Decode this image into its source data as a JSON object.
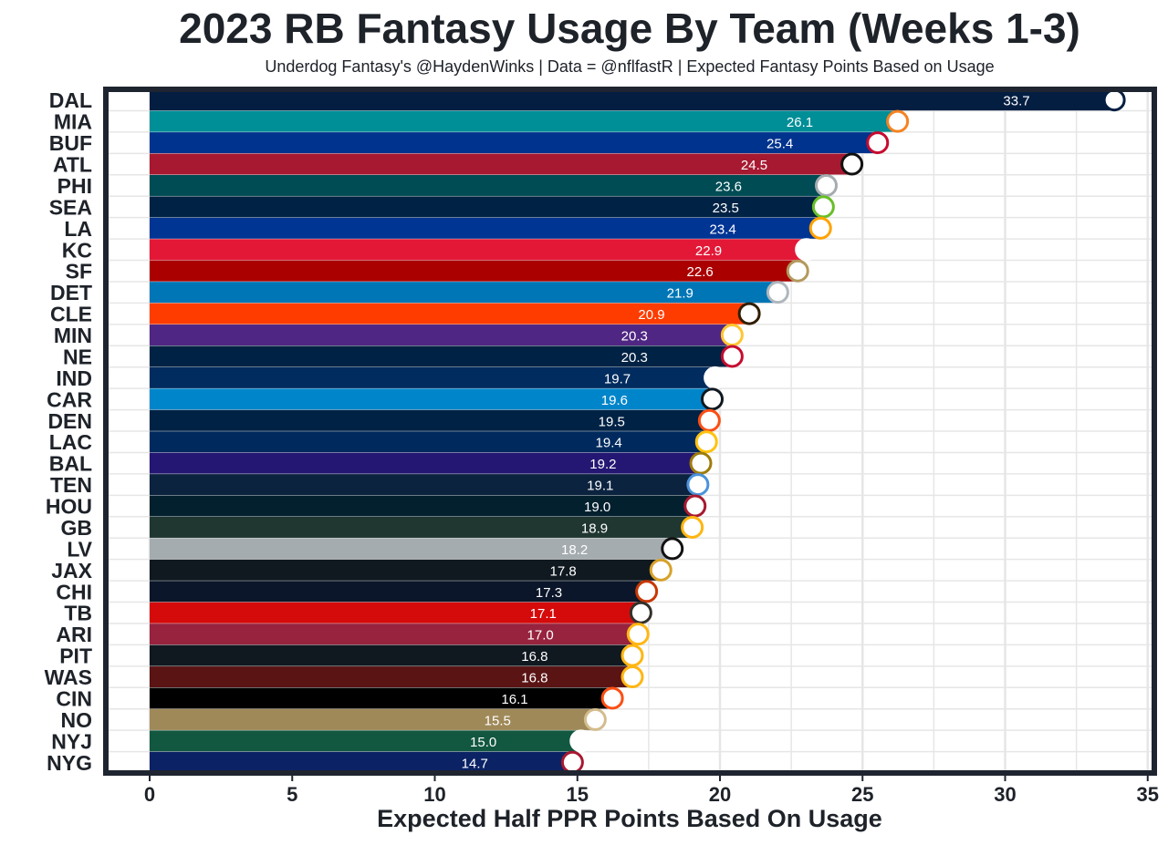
{
  "chart_data": {
    "type": "bar",
    "orientation": "horizontal",
    "title": "2023 RB Fantasy Usage By Team (Weeks 1-3)",
    "subtitle": "Underdog Fantasy's @HaydenWinks | Data = @nflfastR | Expected Fantasy Points Based on Usage",
    "xlabel": "Expected Half PPR Points Based On Usage",
    "ylabel": "",
    "xlim": [
      -1.5,
      35.4
    ],
    "xticks": [
      0,
      5,
      10,
      15,
      20,
      25,
      30,
      35
    ],
    "grid": true,
    "categories": [
      "DAL",
      "MIA",
      "BUF",
      "ATL",
      "PHI",
      "SEA",
      "LA",
      "KC",
      "SF",
      "DET",
      "CLE",
      "MIN",
      "NE",
      "IND",
      "CAR",
      "DEN",
      "LAC",
      "BAL",
      "TEN",
      "HOU",
      "GB",
      "LV",
      "JAX",
      "CHI",
      "TB",
      "ARI",
      "PIT",
      "WAS",
      "CIN",
      "NO",
      "NYJ",
      "NYG"
    ],
    "values": [
      33.7,
      26.1,
      25.4,
      24.5,
      23.6,
      23.5,
      23.4,
      22.9,
      22.6,
      21.9,
      20.9,
      20.3,
      20.3,
      19.7,
      19.6,
      19.5,
      19.4,
      19.2,
      19.1,
      19.0,
      18.9,
      18.2,
      17.8,
      17.3,
      17.1,
      17.0,
      16.8,
      16.8,
      16.1,
      15.5,
      15.0,
      14.7
    ],
    "value_labels": [
      "33.7",
      "26.1",
      "25.4",
      "24.5",
      "23.6",
      "23.5",
      "23.4",
      "22.9",
      "22.6",
      "21.9",
      "20.9",
      "20.3",
      "20.3",
      "19.7",
      "19.6",
      "19.5",
      "19.4",
      "19.2",
      "19.1",
      "19.0",
      "18.9",
      "18.2",
      "17.8",
      "17.3",
      "17.1",
      "17.0",
      "16.8",
      "16.8",
      "16.1",
      "15.5",
      "15.0",
      "14.7"
    ],
    "colors": [
      "#041e42",
      "#008e97",
      "#00338d",
      "#a71930",
      "#004c54",
      "#002244",
      "#003594",
      "#e31837",
      "#aa0000",
      "#0076b6",
      "#ff3c00",
      "#4f2683",
      "#002244",
      "#002c5f",
      "#0085ca",
      "#002244",
      "#002a5e",
      "#241773",
      "#0c2340",
      "#03202f",
      "#203731",
      "#a5acaf",
      "#101820",
      "#0b162a",
      "#d50a0a",
      "#97233f",
      "#101820",
      "#5a1414",
      "#000000",
      "#9f8958",
      "#125740",
      "#0b2265"
    ],
    "icons": [
      "dal-star-icon",
      "mia-dolphin-icon",
      "buf-bison-icon",
      "atl-falcon-icon",
      "phi-eagle-icon",
      "sea-seahawk-icon",
      "la-ram-icon",
      "kc-arrowhead-icon",
      "sf-oval-icon",
      "det-lion-icon",
      "cle-elf-icon",
      "min-viking-icon",
      "ne-patriot-icon",
      "ind-horseshoe-icon",
      "car-panther-icon",
      "den-bronco-icon",
      "lac-bolt-icon",
      "bal-raven-icon",
      "ten-titan-icon",
      "hou-bull-icon",
      "gb-g-icon",
      "lv-shield-icon",
      "jax-jaguar-icon",
      "chi-c-icon",
      "tb-flag-icon",
      "ari-cardinal-icon",
      "pit-steelers-icon",
      "was-w-icon",
      "cin-tiger-icon",
      "no-fleur-icon",
      "nyj-jets-icon",
      "nyg-ny-icon"
    ],
    "icon_colors": [
      "#041e42",
      "#f58220",
      "#c60c30",
      "#111111",
      "#a5acaf",
      "#69be28",
      "#ffa300",
      "#ffffff",
      "#b3995d",
      "#b0b7bc",
      "#311d00",
      "#ffc62f",
      "#c60c30",
      "#ffffff",
      "#101820",
      "#fb4f14",
      "#ffc20e",
      "#9e7c0c",
      "#4b92db",
      "#a71930",
      "#ffb612",
      "#111111",
      "#d7a22a",
      "#c83803",
      "#34302b",
      "#ffb612",
      "#ffb612",
      "#ffb612",
      "#fb4f14",
      "#d3bc8d",
      "#ffffff",
      "#a71930"
    ]
  }
}
